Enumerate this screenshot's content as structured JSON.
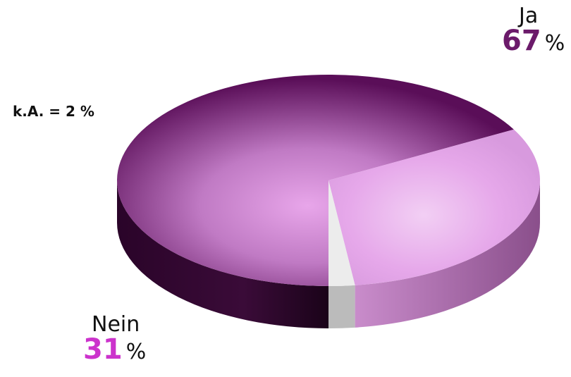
{
  "chart_data": {
    "type": "pie",
    "slices": [
      {
        "label": "Ja",
        "value": 67,
        "unit": "%",
        "color": "#7a1a78"
      },
      {
        "label": "Nein",
        "value": 31,
        "unit": "%",
        "color": "#e6a8ea"
      },
      {
        "label": "k.A. = 2 %",
        "value": 2,
        "unit": "%",
        "color": "#ececec"
      }
    ],
    "style": "3d",
    "legend": "none"
  },
  "labels": {
    "ja_name": "Ja",
    "ja_value": "67",
    "ja_unit": "%",
    "nein_name": "Nein",
    "nein_value": "31",
    "nein_unit": "%",
    "ka_text": "k.A. = 2 %"
  },
  "colors": {
    "ja_value": "#6b1a6a",
    "nein_value": "#cc33cc"
  }
}
